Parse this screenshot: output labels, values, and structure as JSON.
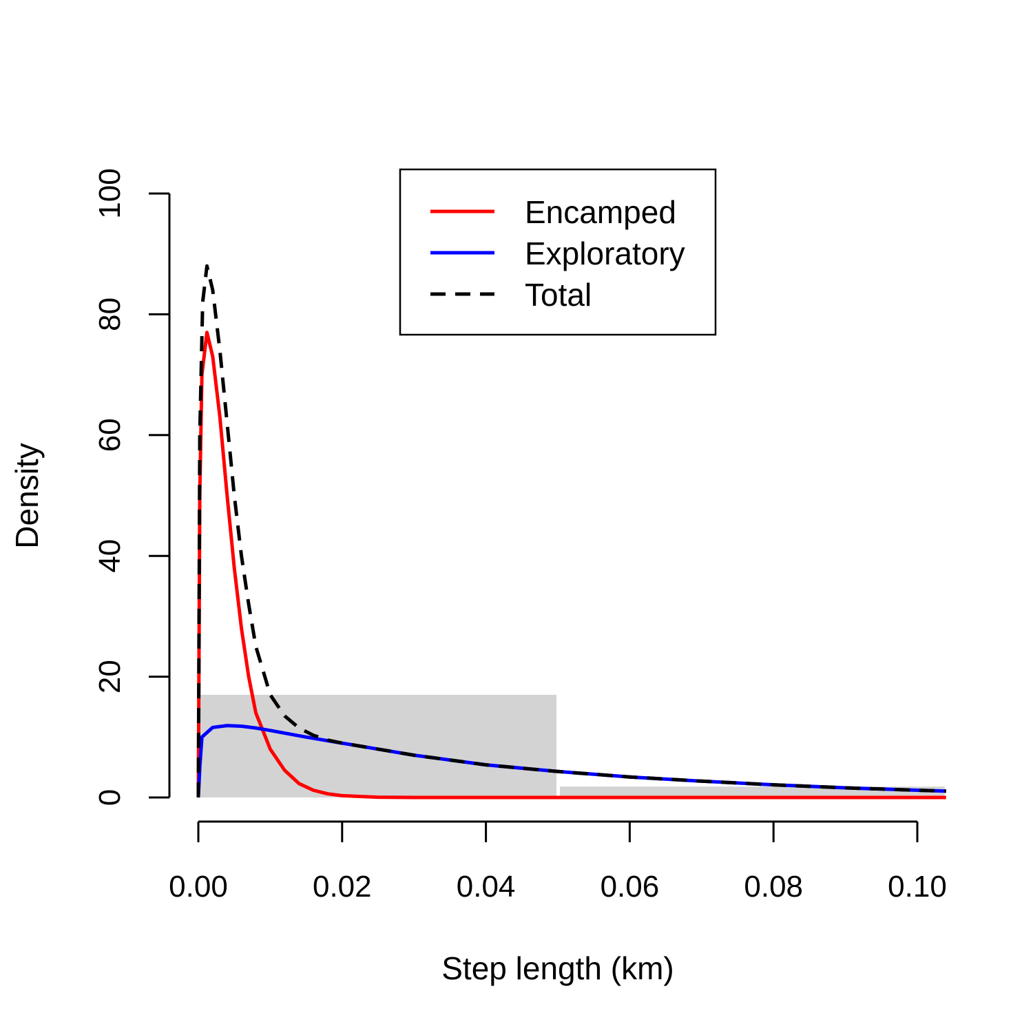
{
  "chart_data": {
    "type": "line",
    "xlabel": "Step length (km)",
    "ylabel": "Density",
    "xlim": [
      0,
      0.104
    ],
    "ylim": [
      0,
      100
    ],
    "x_ticks": [
      0,
      0.02,
      0.04,
      0.06,
      0.08,
      0.1
    ],
    "x_tick_labels": [
      "0.00",
      "0.02",
      "0.04",
      "0.06",
      "0.08",
      "0.10"
    ],
    "y_ticks": [
      0,
      20,
      40,
      60,
      80,
      100
    ],
    "y_tick_labels": [
      "0",
      "20",
      "40",
      "60",
      "80",
      "100"
    ],
    "grid": false,
    "legend_position": "top-center",
    "histogram": {
      "color": "#d3d3d3",
      "bins": [
        {
          "x0": 0,
          "x1": 0.05,
          "density": 17
        },
        {
          "x0": 0.05,
          "x1": 0.104,
          "density": 1.8
        }
      ]
    },
    "series": [
      {
        "name": "Encamped",
        "color": "#ff0000",
        "style": "solid",
        "points": [
          [
            0,
            0
          ],
          [
            0.0002,
            50
          ],
          [
            0.0005,
            70
          ],
          [
            0.0012,
            77
          ],
          [
            0.002,
            73
          ],
          [
            0.003,
            63
          ],
          [
            0.004,
            50
          ],
          [
            0.005,
            38
          ],
          [
            0.006,
            28
          ],
          [
            0.007,
            20
          ],
          [
            0.008,
            14
          ],
          [
            0.009,
            11
          ],
          [
            0.01,
            8
          ],
          [
            0.012,
            4.5
          ],
          [
            0.014,
            2.3
          ],
          [
            0.016,
            1.2
          ],
          [
            0.018,
            0.6
          ],
          [
            0.02,
            0.3
          ],
          [
            0.025,
            0.05
          ],
          [
            0.03,
            0
          ],
          [
            0.05,
            0
          ],
          [
            0.104,
            0
          ]
        ]
      },
      {
        "name": "Exploratory",
        "color": "#0000ff",
        "style": "solid",
        "points": [
          [
            0,
            0
          ],
          [
            0.0002,
            5
          ],
          [
            0.0005,
            10
          ],
          [
            0.002,
            11.6
          ],
          [
            0.004,
            11.9
          ],
          [
            0.006,
            11.8
          ],
          [
            0.008,
            11.5
          ],
          [
            0.01,
            11.1
          ],
          [
            0.015,
            10
          ],
          [
            0.02,
            9
          ],
          [
            0.025,
            8
          ],
          [
            0.03,
            7
          ],
          [
            0.035,
            6.2
          ],
          [
            0.04,
            5.4
          ],
          [
            0.05,
            4.3
          ],
          [
            0.06,
            3.4
          ],
          [
            0.07,
            2.7
          ],
          [
            0.08,
            2.1
          ],
          [
            0.09,
            1.6
          ],
          [
            0.1,
            1.2
          ],
          [
            0.104,
            1.05
          ]
        ]
      },
      {
        "name": "Total",
        "color": "#000000",
        "style": "dashed",
        "points": [
          [
            0,
            0
          ],
          [
            0.0002,
            60
          ],
          [
            0.0006,
            82
          ],
          [
            0.0012,
            88
          ],
          [
            0.002,
            84
          ],
          [
            0.003,
            74
          ],
          [
            0.004,
            62
          ],
          [
            0.005,
            50
          ],
          [
            0.006,
            40
          ],
          [
            0.007,
            32
          ],
          [
            0.008,
            25
          ],
          [
            0.009,
            21
          ],
          [
            0.01,
            17
          ],
          [
            0.012,
            13.5
          ],
          [
            0.014,
            11.5
          ],
          [
            0.016,
            10.3
          ],
          [
            0.018,
            9.5
          ],
          [
            0.02,
            9
          ],
          [
            0.025,
            8
          ],
          [
            0.03,
            7
          ],
          [
            0.035,
            6.2
          ],
          [
            0.04,
            5.4
          ],
          [
            0.05,
            4.3
          ],
          [
            0.06,
            3.4
          ],
          [
            0.07,
            2.7
          ],
          [
            0.08,
            2.1
          ],
          [
            0.09,
            1.6
          ],
          [
            0.1,
            1.2
          ],
          [
            0.104,
            1.05
          ]
        ]
      }
    ]
  }
}
